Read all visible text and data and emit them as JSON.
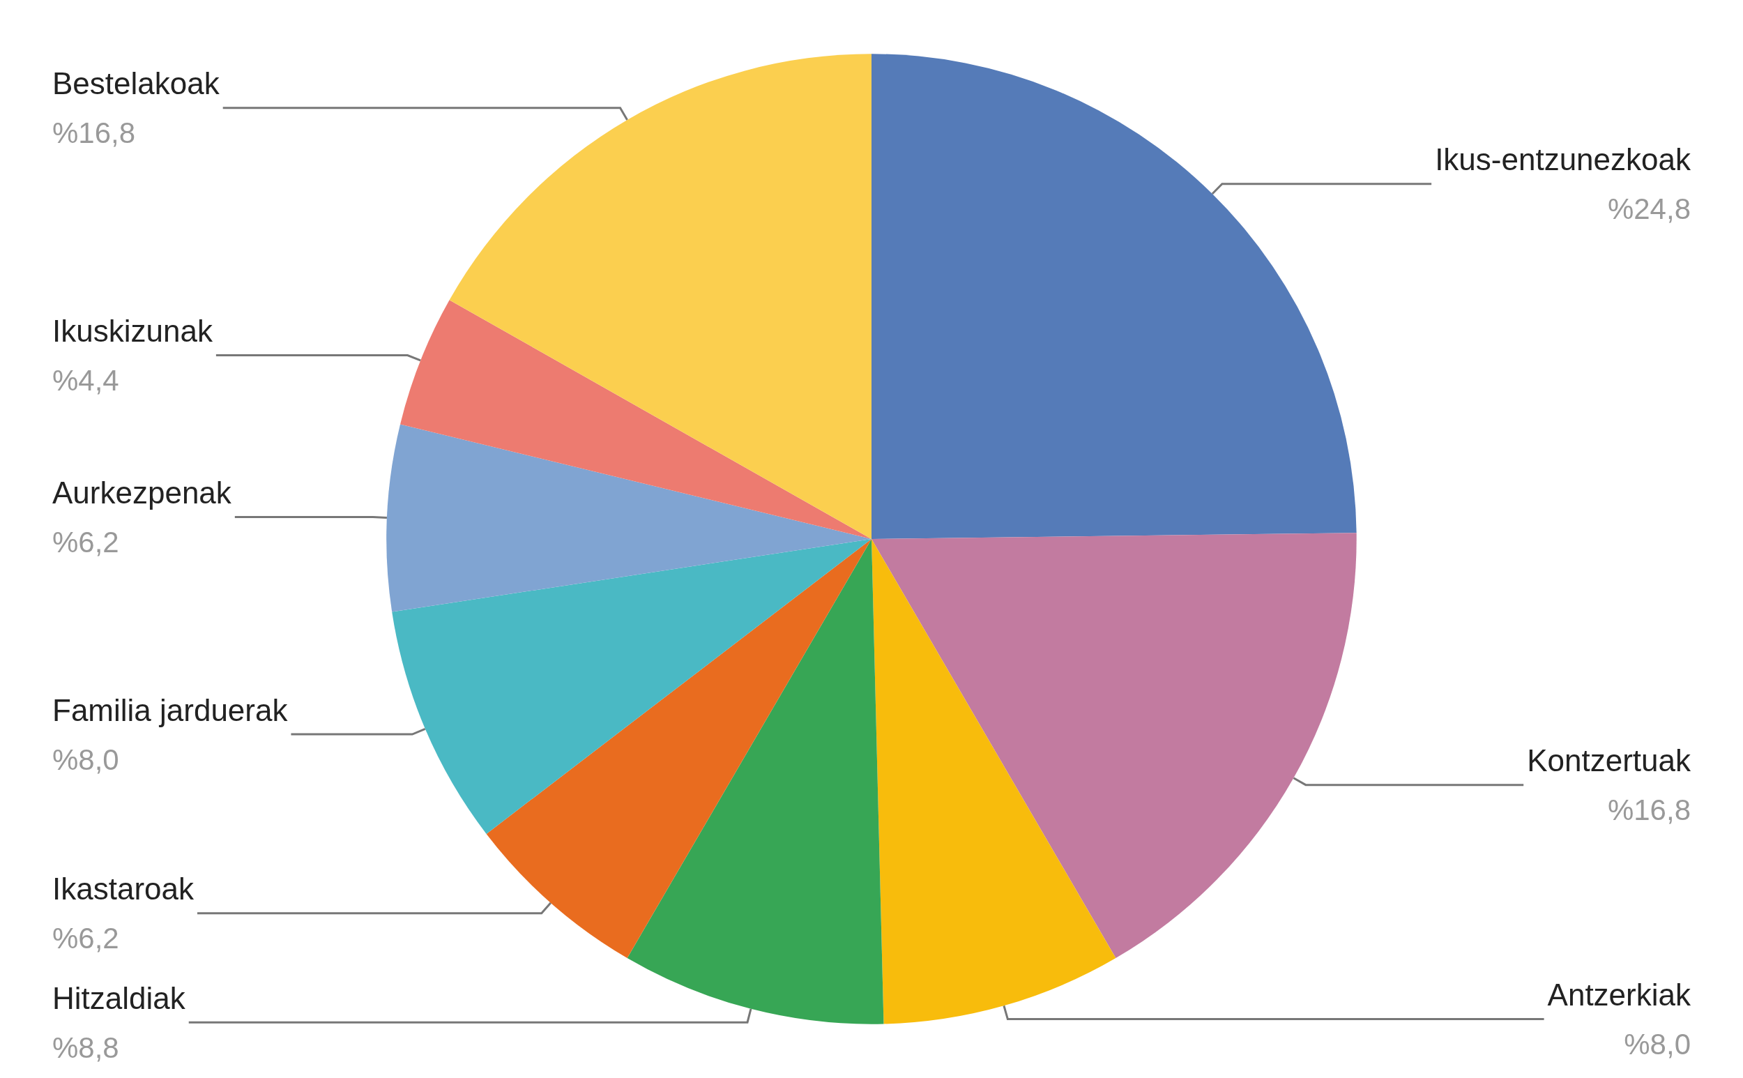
{
  "chart_data": {
    "type": "pie",
    "categories": [
      "Ikus-entzunezkoak",
      "Kontzertuak",
      "Antzerkiak",
      "Hitzaldiak",
      "Ikastaroak",
      "Familia jarduerak",
      "Aurkezpenak",
      "Ikuskizunak",
      "Bestelakoak"
    ],
    "values": [
      24.8,
      16.8,
      8.0,
      8.8,
      6.2,
      8.0,
      6.2,
      4.4,
      16.8
    ],
    "value_labels": [
      "%24,8",
      "%16,8",
      "%8,0",
      "%8,8",
      "%6,2",
      "%8,0",
      "%6,2",
      "%4,4",
      "%16,8"
    ],
    "colors": [
      "#557bb8",
      "#c27ba0",
      "#f8bc0c",
      "#37a655",
      "#e96c1f",
      "#4ab9c4",
      "#80a4d2",
      "#ed7b70",
      "#fbcf4f"
    ],
    "legend": false
  }
}
